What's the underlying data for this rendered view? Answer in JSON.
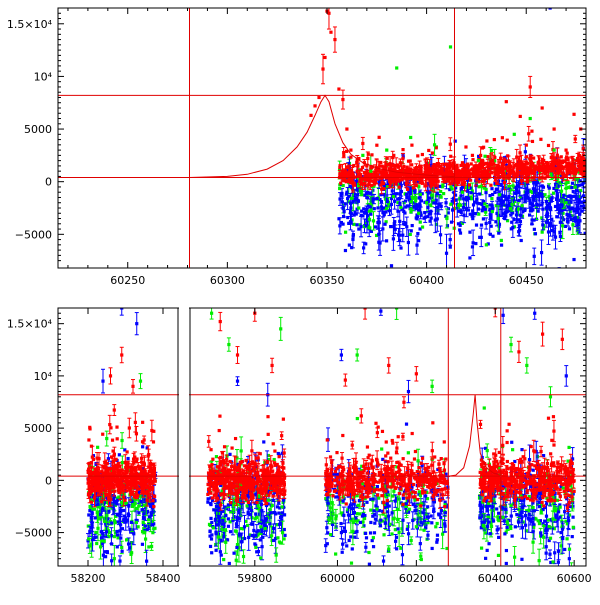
{
  "colors": {
    "red": "#ff0000",
    "green": "#00ee00",
    "blue": "#0000ff",
    "ref_line": "#e00000",
    "axis": "#000000"
  },
  "chart_data": [
    {
      "type": "scatter",
      "title": "",
      "xlabel": "",
      "ylabel": "",
      "xlim": [
        60215,
        60480
      ],
      "ylim": [
        -8200,
        16500
      ],
      "grid": false,
      "x_tick_labels": [
        "60250",
        "60300",
        "60350",
        "60400",
        "60450"
      ],
      "x_ticks": [
        60250,
        60300,
        60350,
        60400,
        60450
      ],
      "y_tick_labels": [
        "−5000",
        "0",
        "5000",
        "10⁴",
        "1.5×10⁴"
      ],
      "y_ticks": [
        -5000,
        0,
        5000,
        10000,
        15000
      ],
      "hlines": [
        8200,
        400
      ],
      "vlines": [
        60281,
        60414
      ],
      "model_curve": {
        "description_free": true,
        "x": [
          60281,
          60300,
          60310,
          60320,
          60328,
          60335,
          60340,
          60344,
          60347,
          60349,
          60351,
          60354,
          60358,
          60362,
          60368,
          60375,
          60385,
          60395,
          60405,
          60414
        ],
        "y": [
          400,
          500,
          700,
          1200,
          2000,
          3300,
          4700,
          6300,
          7600,
          8200,
          7600,
          5500,
          3700,
          2600,
          1800,
          1300,
          900,
          700,
          550,
          480
        ]
      },
      "series": [
        {
          "color": "red",
          "points": [
            [
              60342,
              6300
            ],
            [
              60344,
              7200
            ],
            [
              60346,
              8000
            ],
            [
              60348,
              10700
            ],
            [
              60349,
              11800
            ],
            [
              60350,
              16200
            ],
            [
              60351,
              16000
            ],
            [
              60352,
              14200
            ],
            [
              60354,
              13500
            ],
            [
              60356,
              8800
            ],
            [
              60358,
              7800
            ],
            [
              60360,
              5000
            ],
            [
              60362,
              3000
            ],
            [
              60366,
              2200
            ],
            [
              60370,
              1500
            ],
            [
              60376,
              1000
            ],
            [
              60382,
              800
            ],
            [
              60390,
              600
            ],
            [
              60398,
              500
            ],
            [
              60404,
              700
            ],
            [
              60410,
              1200
            ],
            [
              60418,
              1800
            ],
            [
              60423,
              2500
            ],
            [
              60428,
              3200
            ],
            [
              60434,
              4000
            ],
            [
              60440,
              7600
            ],
            [
              60447,
              6200
            ],
            [
              60452,
              9000
            ],
            [
              60458,
              7000
            ],
            [
              60464,
              5000
            ],
            [
              60470,
              3000
            ],
            [
              60474,
              6400
            ]
          ],
          "error_bars": [
            [
              60348,
              1400
            ],
            [
              60351,
              1500
            ],
            [
              60354,
              1200
            ],
            [
              60358,
              900
            ],
            [
              60444,
              900
            ],
            [
              60452,
              1000
            ]
          ]
        },
        {
          "color": "green",
          "points": [
            [
              60368,
              2500
            ],
            [
              60372,
              1000
            ],
            [
              60380,
              3000
            ],
            [
              60385,
              10800
            ],
            [
              60392,
              4200
            ],
            [
              60396,
              -3000
            ],
            [
              60400,
              -2000
            ],
            [
              60404,
              3500
            ],
            [
              60412,
              12800
            ],
            [
              60418,
              -1000
            ],
            [
              60426,
              2000
            ],
            [
              60430,
              -6000
            ],
            [
              60436,
              -3500
            ],
            [
              60444,
              4500
            ],
            [
              60452,
              6000
            ],
            [
              60460,
              16800
            ],
            [
              60464,
              3000
            ],
            [
              60470,
              -2000
            ]
          ],
          "error_bars": [
            [
              60404,
              1000
            ],
            [
              60436,
              1200
            ]
          ]
        },
        {
          "color": "blue",
          "points": [
            [
              60362,
              -2500
            ],
            [
              60366,
              -4500
            ],
            [
              60370,
              -1500
            ],
            [
              60376,
              -5000
            ],
            [
              60384,
              -3800
            ],
            [
              60390,
              -1200
            ],
            [
              60396,
              -5600
            ],
            [
              60402,
              -3000
            ],
            [
              60410,
              -6800
            ],
            [
              60416,
              -4000
            ],
            [
              60420,
              -1500
            ],
            [
              60426,
              -2600
            ],
            [
              60432,
              -5000
            ],
            [
              60438,
              -2000
            ],
            [
              60444,
              -3600
            ],
            [
              60450,
              -1200
            ],
            [
              60456,
              -2800
            ],
            [
              60462,
              16500
            ],
            [
              60468,
              -2200
            ],
            [
              60474,
              -3500
            ]
          ],
          "error_bars": [
            [
              60376,
              1500
            ],
            [
              60410,
              1800
            ],
            [
              60438,
              1300
            ]
          ]
        }
      ]
    },
    {
      "type": "scatter",
      "title": "",
      "xlabel": "",
      "ylabel": "",
      "xlim": [
        58050,
        60630
      ],
      "ylim": [
        -8200,
        16500
      ],
      "grid": false,
      "x_tick_labels": [
        "58200",
        "58400",
        "59800",
        "60000",
        "60200",
        "60400",
        "60600"
      ],
      "x_ticks": [
        58200,
        58400,
        59800,
        60000,
        60200,
        60400,
        60600
      ],
      "y_tick_labels": [
        "−5000",
        "0",
        "5000",
        "10⁴",
        "1.5×10⁴"
      ],
      "y_ticks": [
        -5000,
        0,
        5000,
        10000,
        15000
      ],
      "hlines": [
        8200,
        400
      ],
      "vlines": [
        60281,
        60414
      ],
      "segments": [
        {
          "xlim": [
            58120,
            58440
          ]
        },
        {
          "xlim": [
            59650,
            59900
          ]
        },
        {
          "xlim": [
            59900,
            60630
          ]
        }
      ],
      "bulk_ranges": [
        [
          58200,
          58380
        ],
        [
          59690,
          59870
        ],
        [
          59970,
          60280
        ],
        [
          60360,
          60600
        ]
      ],
      "series": [
        {
          "color": "red",
          "points": [
            [
              58260,
              10000
            ],
            [
              58290,
              12000
            ],
            [
              58320,
              9000
            ],
            [
              59720,
              15200
            ],
            [
              59760,
              12000
            ],
            [
              59800,
              16000
            ],
            [
              59840,
              11000
            ],
            [
              60020,
              9600
            ],
            [
              60070,
              16500
            ],
            [
              60130,
              11000
            ],
            [
              60200,
              10200
            ],
            [
              60400,
              16500
            ],
            [
              60460,
              12300
            ],
            [
              60520,
              14000
            ],
            [
              60570,
              13500
            ]
          ]
        },
        {
          "color": "green",
          "points": [
            [
              58250,
              4000
            ],
            [
              58340,
              9500
            ],
            [
              59700,
              16000
            ],
            [
              59740,
              13000
            ],
            [
              59860,
              14500
            ],
            [
              60050,
              12000
            ],
            [
              60150,
              16500
            ],
            [
              60240,
              9000
            ],
            [
              60440,
              13000
            ],
            [
              60480,
              11000
            ],
            [
              60540,
              8000
            ]
          ]
        },
        {
          "color": "blue",
          "points": [
            [
              58240,
              9500
            ],
            [
              58290,
              16500
            ],
            [
              58330,
              15000
            ],
            [
              59760,
              9500
            ],
            [
              59830,
              8200
            ],
            [
              60010,
              12000
            ],
            [
              60110,
              16200
            ],
            [
              60180,
              8500
            ],
            [
              60420,
              15800
            ],
            [
              60500,
              16000
            ],
            [
              60580,
              10000
            ]
          ]
        }
      ],
      "model_curve": {
        "x": [
          60281,
          60300,
          60320,
          60335,
          60344,
          60349,
          60354,
          60362,
          60375,
          60395,
          60414
        ],
        "y": [
          400,
          500,
          1200,
          3300,
          6300,
          8200,
          5500,
          2600,
          1300,
          700,
          480
        ]
      }
    }
  ]
}
